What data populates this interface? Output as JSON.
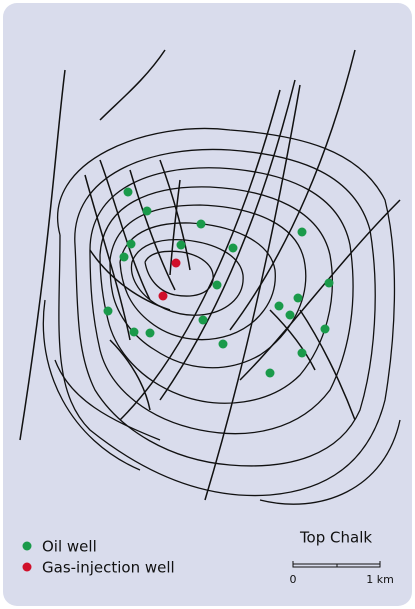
{
  "legend": [
    {
      "label": "Oil well"
    },
    {
      "label": "Gas-injection well"
    }
  ],
  "title": "Top Chalk",
  "scale": {
    "start": "0",
    "end": "1 km"
  }
}
